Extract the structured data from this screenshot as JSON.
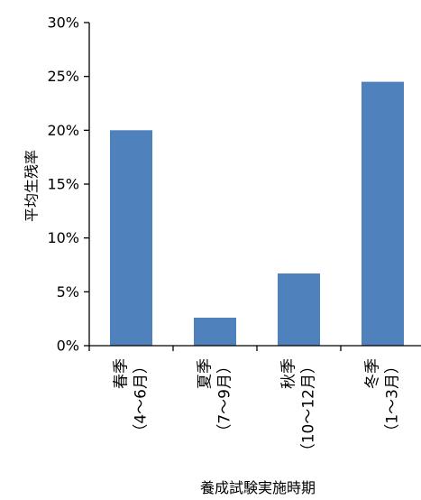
{
  "chart_data": {
    "type": "bar",
    "categories": [
      {
        "season": "春季",
        "months": "（4〜6月）"
      },
      {
        "season": "夏季",
        "months": "（7〜9月）"
      },
      {
        "season": "秋季",
        "months": "（10〜12月）"
      },
      {
        "season": "冬季",
        "months": "（1〜3月）"
      }
    ],
    "values": [
      20.0,
      2.6,
      6.7,
      24.5
    ],
    "ylabel": "平均生残率",
    "xlabel": "養成試験実施時期",
    "ylim": [
      0,
      30
    ],
    "yticks": [
      "0%",
      "5%",
      "10%",
      "15%",
      "20%",
      "25%",
      "30%"
    ],
    "grid": false,
    "bar_color": "#4f81bd"
  }
}
